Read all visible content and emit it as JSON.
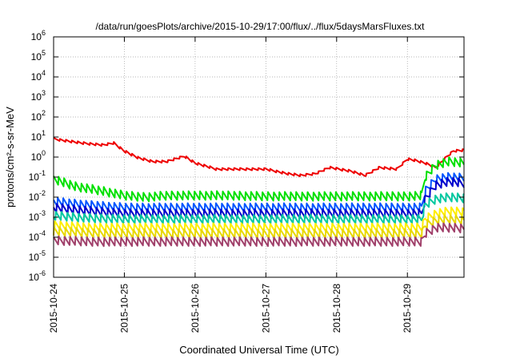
{
  "chart_data": {
    "type": "line",
    "title": "/data/run/goesPlots/archive/2015-10-29/17:00/flux/../flux/5daysMarsFluxes.txt",
    "xlabel": "Coordinated Universal Time (UTC)",
    "ylabel": "protons/cm²-s-sr-MeV",
    "y_scale": "log",
    "ylim": [
      1e-06,
      1000000.0
    ],
    "xlim": [
      0,
      5.8
    ],
    "grid": true,
    "x_tick_labels": [
      "2015-10-24",
      "2015-10-25",
      "2015-10-26",
      "2015-10-27",
      "2015-10-28",
      "2015-10-29"
    ],
    "y_ticks": [
      {
        "base": "10",
        "exp": "-6"
      },
      {
        "base": "10",
        "exp": "-5"
      },
      {
        "base": "10",
        "exp": "-4"
      },
      {
        "base": "10",
        "exp": "-3"
      },
      {
        "base": "10",
        "exp": "-2"
      },
      {
        "base": "10",
        "exp": "-1"
      },
      {
        "base": "10",
        "exp": "0"
      },
      {
        "base": "10",
        "exp": "1"
      },
      {
        "base": "10",
        "exp": "2"
      },
      {
        "base": "10",
        "exp": "3"
      },
      {
        "base": "10",
        "exp": "4"
      },
      {
        "base": "10",
        "exp": "5"
      },
      {
        "base": "10",
        "exp": "6"
      }
    ],
    "series": [
      {
        "color": "#ee0000",
        "x": [
          0.0,
          0.4,
          0.7,
          0.85,
          1.0,
          1.2,
          1.4,
          1.6,
          1.85,
          2.0,
          2.3,
          2.6,
          3.0,
          3.3,
          3.5,
          3.7,
          3.9,
          4.2,
          4.4,
          4.6,
          4.85,
          5.0,
          5.1,
          5.25,
          5.4,
          5.55,
          5.65,
          5.8
        ],
        "y": [
          8,
          5,
          4,
          5,
          2,
          0.9,
          0.6,
          0.6,
          1.1,
          0.5,
          0.25,
          0.25,
          0.25,
          0.15,
          0.12,
          0.15,
          0.3,
          0.2,
          0.12,
          0.3,
          0.25,
          0.8,
          0.7,
          0.5,
          0.3,
          1.0,
          2.0,
          2.2
        ]
      },
      {
        "color": "#00e000",
        "x": [
          0.0,
          0.3,
          0.7,
          1.0,
          1.3,
          1.6,
          2.0,
          2.5,
          3.0,
          3.5,
          4.0,
          4.5,
          5.0,
          5.2,
          5.25,
          5.4,
          5.6,
          5.8
        ],
        "y": [
          0.08,
          0.035,
          0.02,
          0.012,
          0.01,
          0.012,
          0.012,
          0.012,
          0.011,
          0.011,
          0.011,
          0.011,
          0.011,
          0.012,
          0.1,
          0.4,
          0.6,
          0.5
        ]
      },
      {
        "color": "#0055ff",
        "x": [
          0.0,
          0.5,
          1.0,
          1.5,
          2.0,
          2.5,
          3.0,
          3.5,
          4.0,
          4.5,
          5.0,
          5.2,
          5.25,
          5.4,
          5.6,
          5.8
        ],
        "y": [
          0.006,
          0.004,
          0.003,
          0.003,
          0.003,
          0.003,
          0.003,
          0.003,
          0.003,
          0.003,
          0.003,
          0.003,
          0.02,
          0.08,
          0.1,
          0.09
        ]
      },
      {
        "color": "#0000cc",
        "x": [
          0.0,
          0.5,
          1.0,
          1.5,
          2.0,
          2.5,
          3.0,
          3.5,
          4.0,
          4.5,
          5.0,
          5.2,
          5.25,
          5.4,
          5.6,
          5.8
        ],
        "y": [
          0.003,
          0.002,
          0.0015,
          0.0015,
          0.0015,
          0.0015,
          0.0015,
          0.0015,
          0.0015,
          0.0015,
          0.0015,
          0.0015,
          0.008,
          0.04,
          0.06,
          0.05
        ]
      },
      {
        "color": "#00c8a0",
        "x": [
          0.0,
          0.5,
          1.0,
          1.5,
          2.0,
          2.5,
          3.0,
          3.5,
          4.0,
          4.5,
          5.0,
          5.2,
          5.25,
          5.4,
          5.6,
          5.8
        ],
        "y": [
          0.0012,
          0.0009,
          0.0008,
          0.0008,
          0.0008,
          0.0008,
          0.0008,
          0.0008,
          0.0008,
          0.0008,
          0.0008,
          0.0008,
          0.004,
          0.008,
          0.01,
          0.009
        ]
      },
      {
        "color": "#ffee00",
        "x": [
          0.0,
          0.5,
          1.0,
          1.5,
          2.0,
          2.5,
          3.0,
          3.5,
          4.0,
          4.5,
          5.0,
          5.2,
          5.25,
          5.4,
          5.6,
          5.8
        ],
        "y": [
          0.0004,
          0.0003,
          0.0003,
          0.0003,
          0.0003,
          0.0003,
          0.0003,
          0.0003,
          0.0003,
          0.0003,
          0.0003,
          0.0003,
          0.0008,
          0.0015,
          0.002,
          0.0018
        ]
      },
      {
        "color": "#e8d800",
        "x": [
          0.0,
          0.5,
          1.0,
          1.5,
          2.0,
          2.5,
          3.0,
          3.5,
          4.0,
          4.5,
          5.0,
          5.2,
          5.25,
          5.4,
          5.6,
          5.8
        ],
        "y": [
          0.0002,
          0.00016,
          0.00015,
          0.00015,
          0.00015,
          0.00015,
          0.00015,
          0.00015,
          0.00015,
          0.00015,
          0.00015,
          0.00015,
          0.0004,
          0.0007,
          0.0008,
          0.0007
        ]
      },
      {
        "color": "#a0406a",
        "x": [
          0.0,
          0.5,
          1.0,
          1.5,
          2.0,
          2.5,
          3.0,
          3.5,
          4.0,
          4.5,
          5.0,
          5.2,
          5.25,
          5.4,
          5.6,
          5.8
        ],
        "y": [
          7e-05,
          6e-05,
          6e-05,
          6e-05,
          6e-05,
          6e-05,
          6e-05,
          6e-05,
          6e-05,
          6e-05,
          6e-05,
          6e-05,
          0.00015,
          0.0003,
          0.0003,
          0.00028
        ]
      }
    ]
  }
}
